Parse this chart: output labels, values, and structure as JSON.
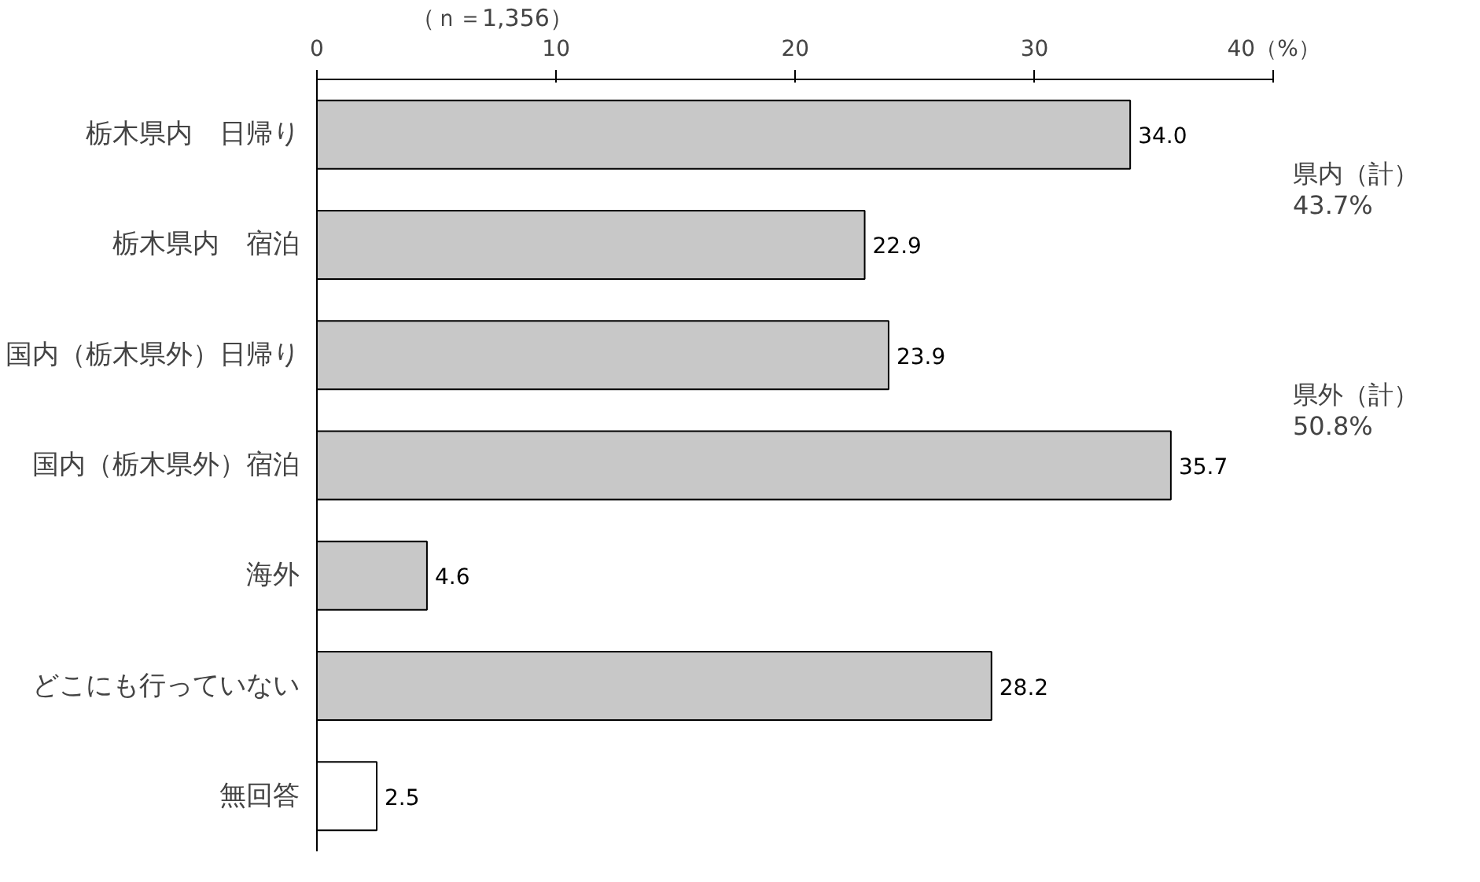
{
  "chart_data": {
    "type": "bar",
    "orientation": "horizontal",
    "categories": [
      "栃木県内　日帰り",
      "栃木県内　宿泊",
      "国内（栃木県外）日帰り",
      "国内（栃木県外）宿泊",
      "海外",
      "どこにも行っていない",
      "無回答"
    ],
    "values": [
      34.0,
      22.9,
      23.9,
      35.7,
      4.6,
      28.2,
      2.5
    ],
    "colors": [
      "#c8c8c8",
      "#c8c8c8",
      "#c8c8c8",
      "#c8c8c8",
      "#c8c8c8",
      "#c8c8c8",
      "#ffffff"
    ],
    "xlim": [
      0,
      40
    ],
    "xticks": [
      0,
      10,
      20,
      30,
      {
        "value": 40,
        "label": "40（%）"
      }
    ],
    "value_labels": [
      "34.0",
      "22.9",
      "23.9",
      "35.7",
      "4.6",
      "28.2",
      "2.5"
    ],
    "grid": false,
    "annotations": [
      "（ｎ＝1,356）",
      "県内（計）\n43.7%",
      "県外（計）\n50.8%"
    ]
  }
}
